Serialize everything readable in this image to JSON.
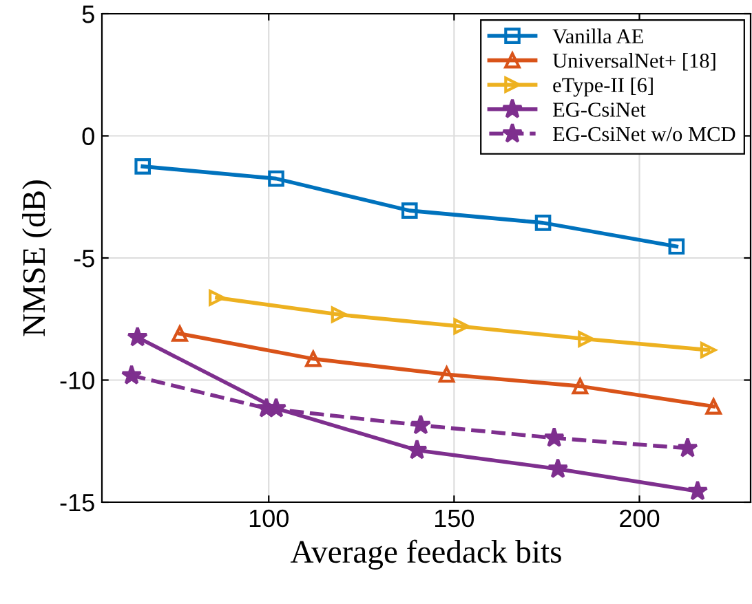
{
  "chart_data": {
    "type": "line",
    "xlabel": "Average feedack bits",
    "ylabel": "NMSE (dB)",
    "xlim": [
      55,
      230
    ],
    "xticks": [
      100,
      150,
      200
    ],
    "ylim": [
      -15,
      5
    ],
    "yticks": [
      -15,
      -10,
      -5,
      0,
      5
    ],
    "grid": true,
    "legend": "top right",
    "series": [
      {
        "name": "Vanilla AE",
        "color": "#0072bd",
        "marker": "square",
        "line_style": "solid",
        "x": [
          66,
          102,
          138,
          174,
          210
        ],
        "values": [
          -1.25,
          -1.75,
          -3.06,
          -3.56,
          -4.53
        ]
      },
      {
        "name": "UniversalNet+ [18]",
        "color": "#d95319",
        "marker": "triangle",
        "line_style": "solid",
        "x": [
          76,
          112,
          148,
          184,
          220
        ],
        "values": [
          -8.1,
          -9.13,
          -9.77,
          -10.25,
          -11.08
        ]
      },
      {
        "name": "eType-II [6]",
        "color": "#edb120",
        "marker": "triangle_right",
        "line_style": "solid",
        "x": [
          86,
          119,
          152,
          185.6,
          218.6
        ],
        "values": [
          -6.63,
          -7.32,
          -7.8,
          -8.32,
          -8.77
        ]
      },
      {
        "name": "EG-CsiNet",
        "color": "#7e2f8e",
        "marker": "star",
        "line_style": "solid",
        "x": [
          64.6,
          102,
          140,
          178,
          215.7
        ],
        "values": [
          -8.25,
          -11.16,
          -12.87,
          -13.64,
          -14.55
        ]
      },
      {
        "name": "EG-CsiNet w/o MCD",
        "color": "#7e2f8e",
        "marker": "star",
        "line_style": "dashed",
        "x": [
          63,
          99.4,
          141,
          177,
          213
        ],
        "values": [
          -9.81,
          -11.16,
          -11.85,
          -12.37,
          -12.79
        ]
      }
    ]
  }
}
